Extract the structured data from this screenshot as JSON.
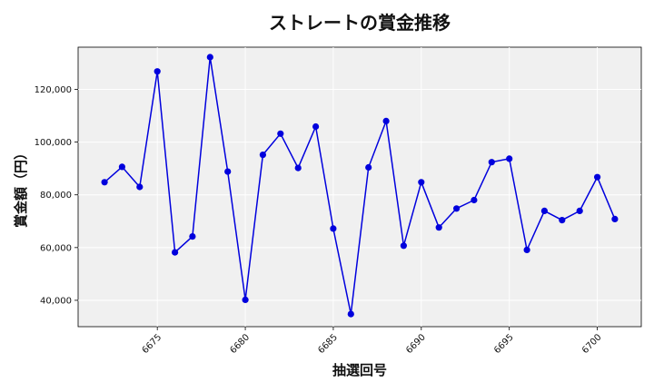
{
  "chart_data": {
    "type": "line",
    "title": "ストレートの賞金推移",
    "xlabel": "抽選回号",
    "ylabel": "賞金額（円）",
    "xlim": [
      6670.5,
      6702.5
    ],
    "ylim": [
      30000,
      136000
    ],
    "x_ticks": [
      6675,
      6680,
      6685,
      6690,
      6695,
      6700
    ],
    "y_ticks": [
      40000,
      60000,
      80000,
      100000,
      120000
    ],
    "y_tick_labels": [
      "40,000",
      "60,000",
      "80,000",
      "100,000",
      "120,000"
    ],
    "grid": true,
    "line_color": "#0000dd",
    "plot_background": "#f0f0f0",
    "series": [
      {
        "x": [
          6672,
          6673,
          6674,
          6675,
          6676,
          6677,
          6678,
          6679,
          6680,
          6681,
          6682,
          6683,
          6684,
          6685,
          6686,
          6687,
          6688,
          6689,
          6690,
          6691,
          6692,
          6693,
          6694,
          6695,
          6696,
          6697,
          6698,
          6699,
          6700,
          6701
        ],
        "values": [
          84800,
          90600,
          83000,
          126800,
          58200,
          64200,
          132200,
          88800,
          40200,
          95200,
          103200,
          90200,
          105900,
          67200,
          34800,
          90400,
          108000,
          60700,
          84800,
          67600,
          74800,
          78000,
          92400,
          93700,
          59100,
          73900,
          70400,
          73900,
          86700,
          70800
        ]
      }
    ]
  }
}
